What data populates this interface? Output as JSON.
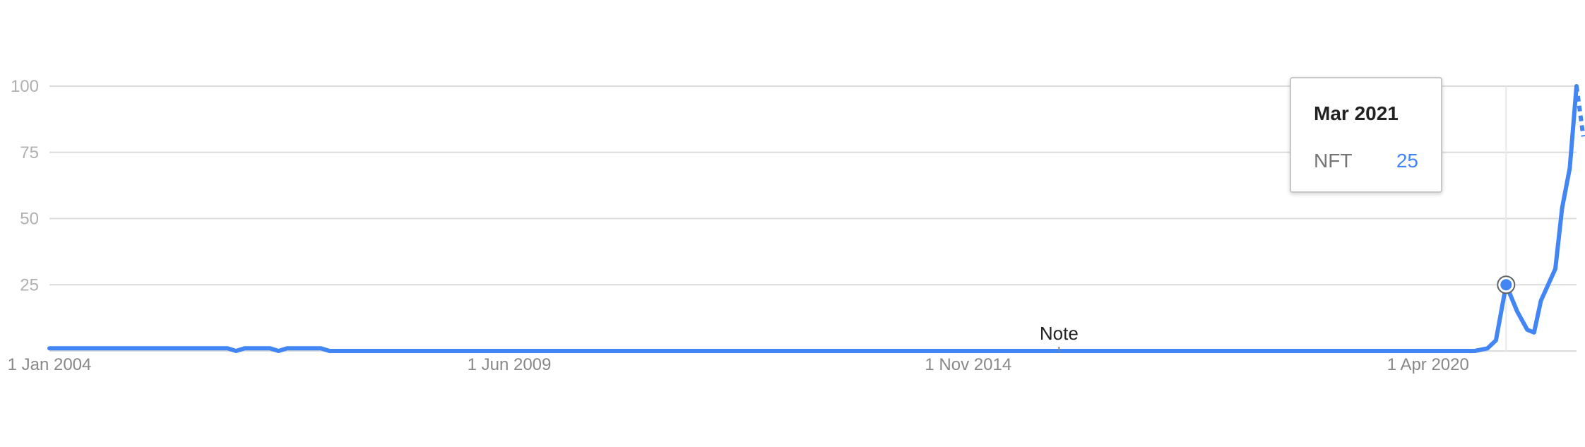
{
  "chart_data": {
    "type": "line",
    "y_ticks": [
      "100",
      "75",
      "50",
      "25"
    ],
    "ylim": [
      0,
      100
    ],
    "x_ticks": [
      "1 Jan 2004",
      "1 Jun 2009",
      "1 Nov 2014",
      "1 Apr 2020"
    ],
    "x_tick_years": [
      2004.0,
      2009.42,
      2014.83,
      2020.25
    ],
    "xlim": [
      2004.0,
      2022.0
    ],
    "grid": true,
    "annotation": "Note",
    "annotation_year": 2015.9,
    "series": [
      {
        "color": "#4285f4",
        "points": [
          [
            2004.0,
            1
          ],
          [
            2006.1,
            1
          ],
          [
            2006.2,
            0
          ],
          [
            2006.3,
            1
          ],
          [
            2006.6,
            1
          ],
          [
            2006.7,
            0
          ],
          [
            2006.8,
            1
          ],
          [
            2007.2,
            1
          ],
          [
            2007.3,
            0
          ],
          [
            2020.8,
            0
          ],
          [
            2020.95,
            1
          ],
          [
            2021.05,
            4
          ],
          [
            2021.17,
            25
          ],
          [
            2021.3,
            15
          ],
          [
            2021.42,
            8
          ],
          [
            2021.5,
            7
          ],
          [
            2021.58,
            19
          ],
          [
            2021.75,
            31
          ],
          [
            2021.83,
            54
          ],
          [
            2021.92,
            69
          ],
          [
            2022.0,
            100
          ]
        ],
        "partial_points": [
          [
            2022.0,
            100
          ],
          [
            2022.08,
            81
          ]
        ]
      }
    ],
    "highlight": {
      "year": 2021.17,
      "value": 25
    }
  },
  "tooltip": {
    "date": "Mar 2021",
    "term": "NFT",
    "value": "25"
  }
}
